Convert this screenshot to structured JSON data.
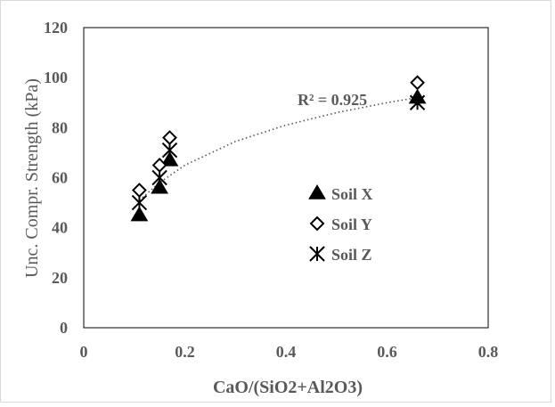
{
  "chart_data": {
    "type": "scatter",
    "xlabel": "CaO/(SiO2+Al2O3)",
    "ylabel": "Unc. Compr. Strength (kPa)",
    "xlim": [
      0,
      0.8
    ],
    "ylim": [
      0,
      120
    ],
    "x_ticks": [
      0,
      0.2,
      0.4,
      0.6,
      0.8
    ],
    "x_tick_labels": [
      "0",
      "0.2",
      "0.4",
      "0.6",
      "0.8"
    ],
    "y_ticks": [
      0,
      20,
      40,
      60,
      80,
      100,
      120
    ],
    "y_tick_labels": [
      "0",
      "20",
      "40",
      "60",
      "80",
      "100",
      "120"
    ],
    "grid": false,
    "legend_position": "center-right",
    "series": [
      {
        "name": "Soil X",
        "marker": "filled-triangle",
        "color": "#000000",
        "points": [
          {
            "x": 0.11,
            "y": 45
          },
          {
            "x": 0.15,
            "y": 56
          },
          {
            "x": 0.17,
            "y": 67
          },
          {
            "x": 0.66,
            "y": 92
          }
        ]
      },
      {
        "name": "Soil Y",
        "marker": "open-diamond",
        "color": "#000000",
        "points": [
          {
            "x": 0.11,
            "y": 55
          },
          {
            "x": 0.15,
            "y": 65
          },
          {
            "x": 0.17,
            "y": 76
          },
          {
            "x": 0.66,
            "y": 98
          }
        ]
      },
      {
        "name": "Soil Z",
        "marker": "asterisk",
        "color": "#000000",
        "points": [
          {
            "x": 0.11,
            "y": 50
          },
          {
            "x": 0.15,
            "y": 60
          },
          {
            "x": 0.17,
            "y": 71
          },
          {
            "x": 0.66,
            "y": 90
          }
        ]
      }
    ],
    "trendline": {
      "type": "logarithmic",
      "style": "dotted",
      "color": "#555555",
      "label": "R² = 0.925",
      "points": [
        {
          "x": 0.11,
          "y": 51
        },
        {
          "x": 0.15,
          "y": 58
        },
        {
          "x": 0.2,
          "y": 65
        },
        {
          "x": 0.3,
          "y": 74.5
        },
        {
          "x": 0.4,
          "y": 81
        },
        {
          "x": 0.5,
          "y": 86
        },
        {
          "x": 0.6,
          "y": 90
        },
        {
          "x": 0.66,
          "y": 92
        }
      ]
    }
  }
}
